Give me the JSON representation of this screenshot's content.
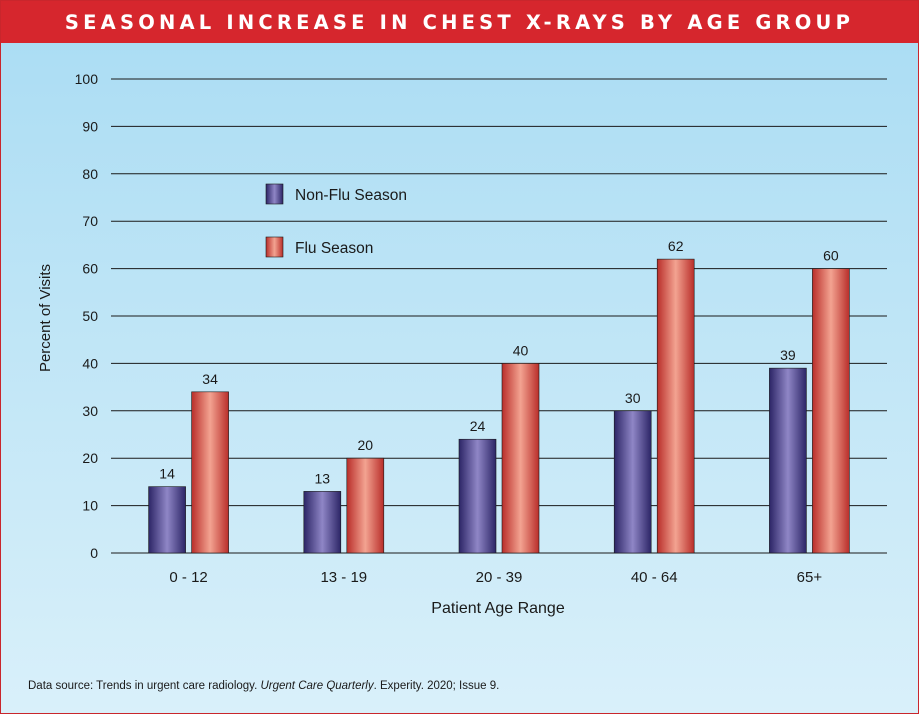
{
  "header": {
    "title": "SEASONAL INCREASE IN CHEST X-RAYS BY AGE GROUP"
  },
  "footer": {
    "prefix": "Data source: Trends in urgent care radiology.",
    "journal": "Urgent Care Quarterly",
    "suffix": ". Experity. 2020; Issue 9."
  },
  "chart_data": {
    "type": "bar",
    "title": "SEASONAL INCREASE IN CHEST X-RAYS BY AGE GROUP",
    "xlabel": "Patient Age Range",
    "ylabel": "Percent of Visits",
    "categories": [
      "0 - 12",
      "13 - 19",
      "20 - 39",
      "40 - 64",
      "65+"
    ],
    "series": [
      {
        "name": "Non-Flu Season",
        "values": [
          14,
          13,
          24,
          30,
          39
        ],
        "color": "#4a3f8c"
      },
      {
        "name": "Flu Season",
        "values": [
          34,
          20,
          40,
          62,
          60
        ],
        "color": "#d2463f"
      }
    ],
    "ylim": [
      0,
      100
    ],
    "yticks": [
      0,
      10,
      20,
      30,
      40,
      50,
      60,
      70,
      80,
      90,
      100
    ],
    "grid": true,
    "legend_position": "upper-left inside plot",
    "data_labels": true
  }
}
